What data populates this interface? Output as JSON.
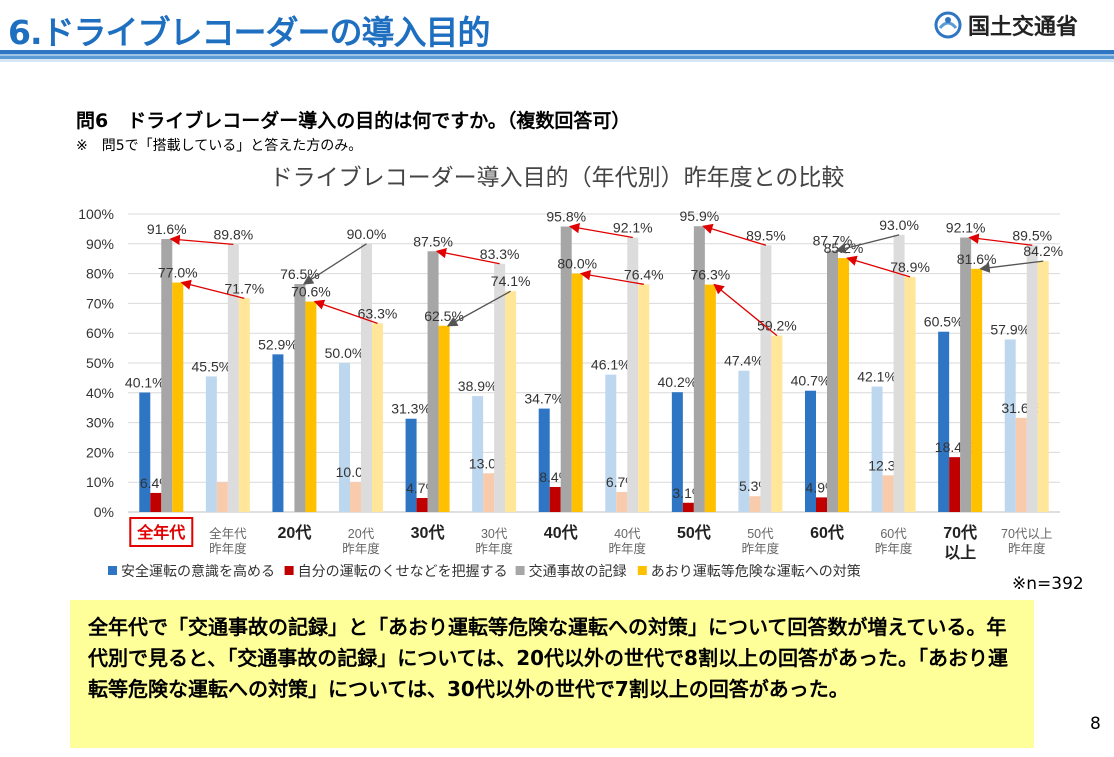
{
  "header": {
    "title": "6.ドライブレコーダーの導入目的",
    "ministry": "国土交通省"
  },
  "question": "問6　ドライブレコーダー導入の目的は何ですか。（複数回答可）",
  "note": "※　問5で「搭載している」と答えた方のみ。",
  "n_label": "※n=392",
  "summary": "全年代で「交通事故の記録」と「あおり運転等危険な運転への対策」について回答数が増えている。年代別で見ると、「交通事故の記録」については、20代以外の世代で8割以上の回答があった。「あおり運転等危険な運転への対策」については、30代以外の世代で7割以上の回答があった。",
  "page_number": "8",
  "chart_data": {
    "type": "bar",
    "title": "ドライブレコーダー導入目的（年代別）昨年度との比較",
    "y_ticks": [
      "0%",
      "10%",
      "20%",
      "30%",
      "40%",
      "50%",
      "60%",
      "70%",
      "80%",
      "90%",
      "100%"
    ],
    "ylim": [
      0,
      100
    ],
    "grid": true,
    "legend_position": "bottom",
    "groups": [
      {
        "label": "全年代",
        "highlight": true,
        "values": [
          40.1,
          6.4,
          91.6,
          77.0
        ],
        "labels": [
          "40.1%",
          "6.4%",
          "91.6%",
          "77.0%"
        ]
      },
      {
        "label": "全年代\n昨年度",
        "prev": true,
        "values": [
          45.5,
          10.0,
          89.8,
          71.7
        ],
        "labels": [
          "45.5%",
          "",
          "89.8%",
          "71.7%"
        ]
      },
      {
        "label": "20代",
        "values": [
          52.9,
          0,
          76.5,
          70.6
        ],
        "labels": [
          "52.9%",
          "",
          "76.5%",
          "70.6%"
        ]
      },
      {
        "label": "20代\n昨年度",
        "prev": true,
        "values": [
          50.0,
          10.0,
          90.0,
          63.3
        ],
        "labels": [
          "50.0%",
          "10.0%",
          "90.0%",
          "63.3%"
        ]
      },
      {
        "label": "30代",
        "values": [
          31.3,
          4.7,
          87.5,
          62.5
        ],
        "labels": [
          "31.3%",
          "4.7%",
          "87.5%",
          "62.5%"
        ]
      },
      {
        "label": "30代\n昨年度",
        "prev": true,
        "values": [
          38.9,
          13.0,
          83.3,
          74.1
        ],
        "labels": [
          "38.9%",
          "13.0%",
          "83.3%",
          "74.1%"
        ]
      },
      {
        "label": "40代",
        "values": [
          34.7,
          8.4,
          95.8,
          80.0
        ],
        "labels": [
          "34.7%",
          "8.4%",
          "95.8%",
          "80.0%"
        ]
      },
      {
        "label": "40代\n昨年度",
        "prev": true,
        "values": [
          46.1,
          6.7,
          92.1,
          76.4
        ],
        "labels": [
          "46.1%",
          "6.7%",
          "92.1%",
          "76.4%"
        ]
      },
      {
        "label": "50代",
        "values": [
          40.2,
          3.1,
          95.9,
          76.3
        ],
        "labels": [
          "40.2%",
          "3.1%",
          "95.9%",
          "76.3%"
        ]
      },
      {
        "label": "50代\n昨年度",
        "prev": true,
        "values": [
          47.4,
          5.3,
          89.5,
          59.2
        ],
        "labels": [
          "47.4%",
          "5.3%",
          "89.5%",
          "59.2%"
        ]
      },
      {
        "label": "60代",
        "values": [
          40.7,
          4.9,
          87.7,
          85.2
        ],
        "labels": [
          "40.7%",
          "4.9%",
          "87.7%",
          "85.2%"
        ]
      },
      {
        "label": "60代\n昨年度",
        "prev": true,
        "values": [
          42.1,
          12.3,
          93.0,
          78.9
        ],
        "labels": [
          "42.1%",
          "12.3%",
          "93.0%",
          "78.9%"
        ]
      },
      {
        "label": "70代\n以上",
        "values": [
          60.5,
          18.4,
          92.1,
          81.6
        ],
        "labels": [
          "60.5%",
          "18.4%",
          "92.1%",
          "81.6%"
        ]
      },
      {
        "label": "70代以上\n昨年度",
        "prev": true,
        "values": [
          57.9,
          31.6,
          89.5,
          84.2
        ],
        "labels": [
          "57.9%",
          "31.6%",
          "89.5%",
          "84.2%"
        ]
      }
    ],
    "series": [
      {
        "name": "安全運転の意識を高める",
        "color": "#2e75c3",
        "prev_color": "#bdd7ee"
      },
      {
        "name": "自分の運転のくせなどを把握する",
        "color": "#c00000",
        "prev_color": "#f8cbad"
      },
      {
        "name": "交通事故の記録",
        "color": "#a6a6a6",
        "prev_color": "#dcdcdc"
      },
      {
        "name": "あおり運転等危険な運転への対策",
        "color": "#ffc000",
        "prev_color": "#ffe699"
      }
    ],
    "arrow_color": "#e00000"
  }
}
